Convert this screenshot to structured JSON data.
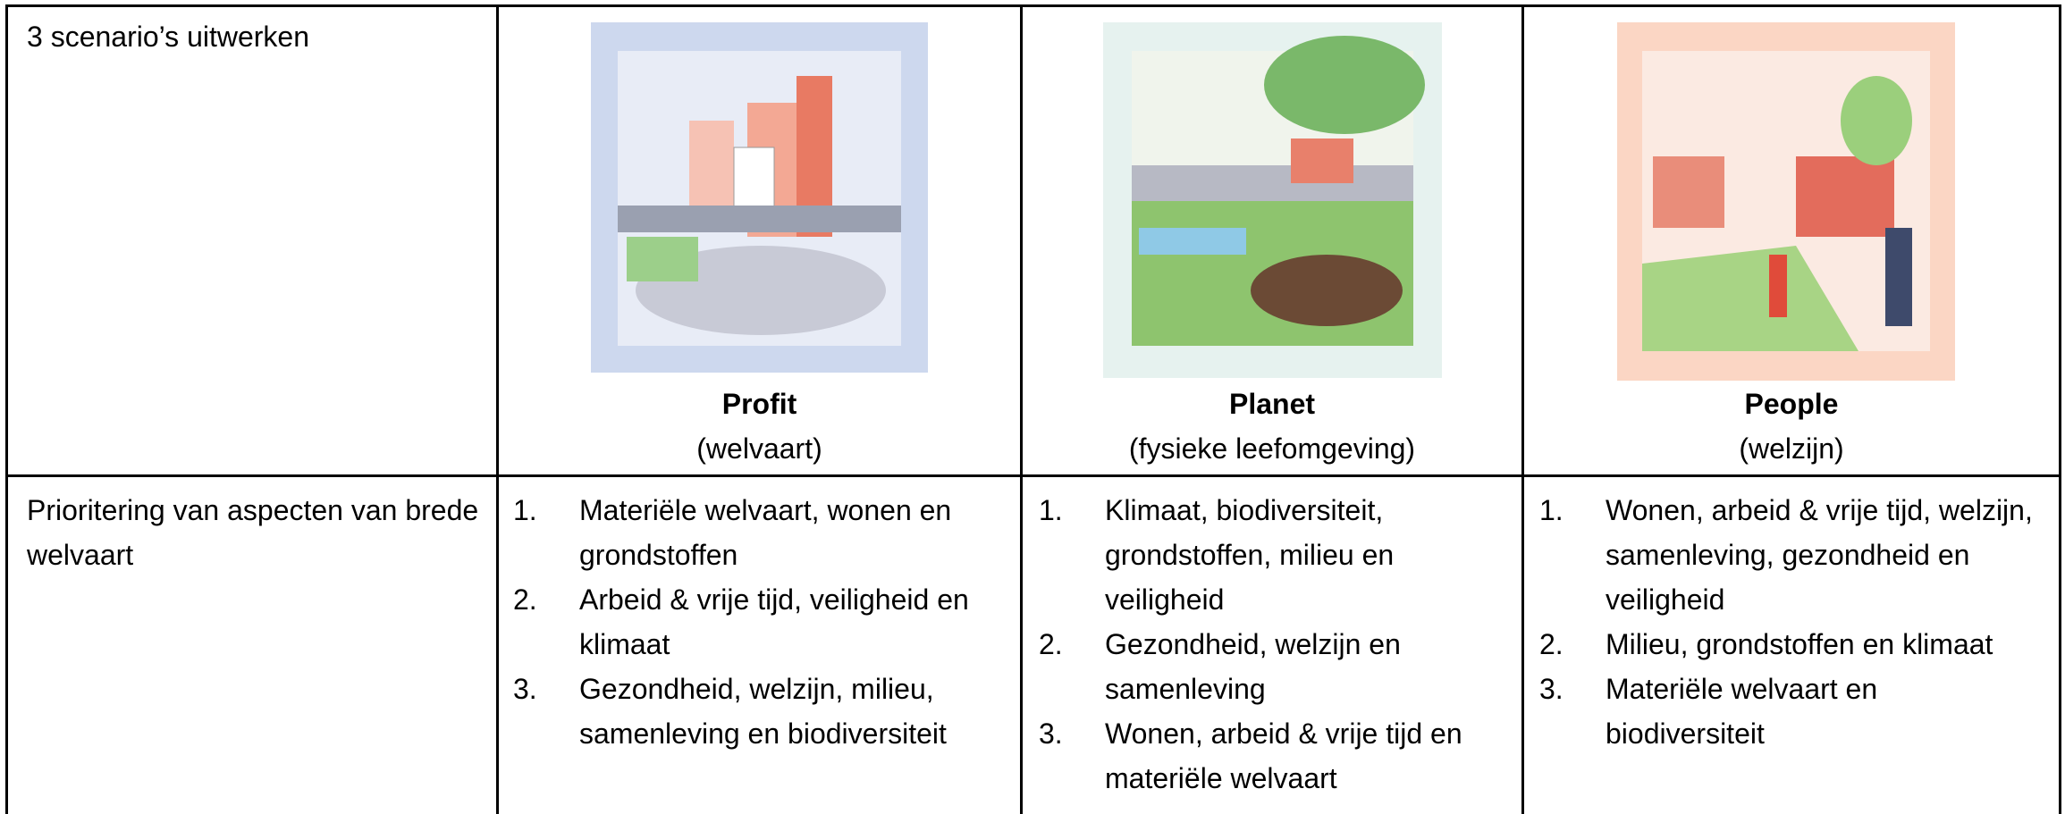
{
  "table": {
    "header_row": {
      "label": "3 scenario’s uitwerken",
      "scenarios": [
        {
          "title": "Profit",
          "subtitle": "(welvaart)"
        },
        {
          "title": "Planet",
          "subtitle": "(fysieke leefomgeving)"
        },
        {
          "title": "People",
          "subtitle": "(welzijn)"
        }
      ]
    },
    "priority_row": {
      "label": "Prioritering van aspecten van brede welvaart",
      "columns": [
        [
          {
            "number": "1.",
            "text": "Materiële welvaart, wonen en grondstoffen"
          },
          {
            "number": "2.",
            "text": "Arbeid & vrije tijd, veiligheid en klimaat"
          },
          {
            "number": "3.",
            "text": "Gezondheid, welzijn, milieu, samenleving en biodiversiteit"
          }
        ],
        [
          {
            "number": "1.",
            "text": "Klimaat, biodiversiteit, grondstoffen, milieu en veiligheid"
          },
          {
            "number": "2.",
            "text": "Gezondheid, welzijn en samenleving"
          },
          {
            "number": "3.",
            "text": "Wonen, arbeid & vrije tijd en materiële welvaart"
          }
        ],
        [
          {
            "number": "1.",
            "text": "Wonen, arbeid & vrije tijd, welzijn, samenleving, gezondheid en veiligheid"
          },
          {
            "number": "2.",
            "text": "Milieu, grondstoffen en klimaat"
          },
          {
            "number": "3.",
            "text": "Materiële welvaart en biodiversiteit"
          }
        ]
      ]
    }
  }
}
